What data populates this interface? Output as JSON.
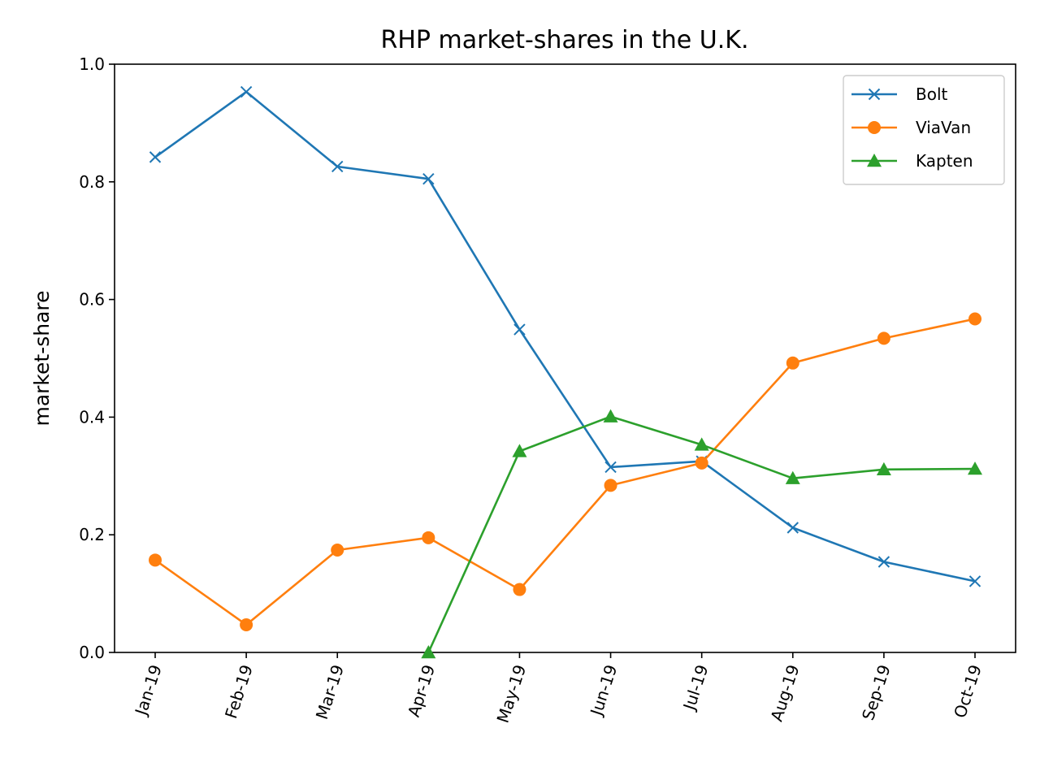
{
  "chart_data": {
    "type": "line",
    "title": "RHP market-shares in the U.K.",
    "xlabel": "",
    "ylabel": "market-share",
    "categories": [
      "Jan-19",
      "Feb-19",
      "Mar-19",
      "Apr-19",
      "May-19",
      "Jun-19",
      "Jul-19",
      "Aug-19",
      "Sep-19",
      "Oct-19"
    ],
    "ylim": [
      0.0,
      1.0
    ],
    "yticks": [
      "0.0",
      "0.2",
      "0.4",
      "0.6",
      "0.8",
      "1.0"
    ],
    "grid": false,
    "legend_position": "top-right",
    "series": [
      {
        "name": "Bolt",
        "color": "#1f77b4",
        "marker": "x",
        "values": [
          0.842,
          0.953,
          0.826,
          0.805,
          0.549,
          0.315,
          0.325,
          0.212,
          0.154,
          0.121
        ]
      },
      {
        "name": "ViaVan",
        "color": "#ff7f0e",
        "marker": "circle",
        "values": [
          0.157,
          0.047,
          0.174,
          0.195,
          0.107,
          0.284,
          0.322,
          0.492,
          0.534,
          0.567
        ]
      },
      {
        "name": "Kapten",
        "color": "#2ca02c",
        "marker": "triangle",
        "values": [
          null,
          null,
          null,
          0.0,
          0.342,
          0.401,
          0.353,
          0.296,
          0.311,
          0.312
        ]
      }
    ]
  }
}
